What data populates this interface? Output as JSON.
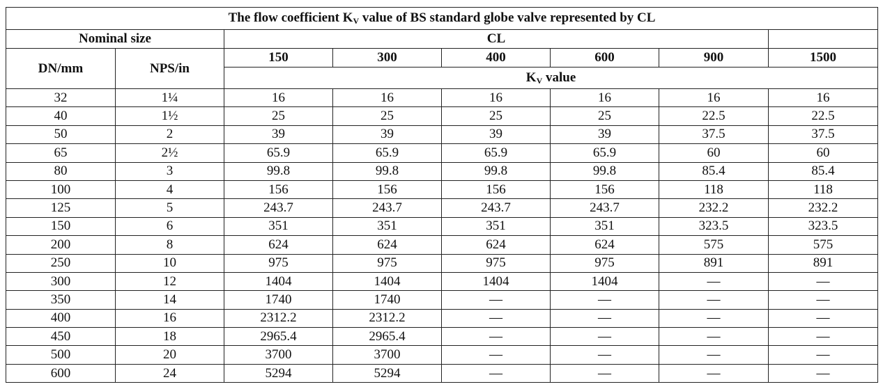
{
  "header": {
    "title": {
      "text": "The flow coefficient K",
      "sub": "V",
      "rest": " value of BS standard globe valve represented by CL"
    }
  },
  "table": {
    "nominal_size": "Nominal size",
    "cl": "CL",
    "columns": [
      "DN/mm",
      "NPS/in"
    ],
    "classes": [
      "150",
      "300",
      "400",
      "600",
      "900",
      "1500"
    ],
    "kv": {
      "text": "K",
      "sub": "V",
      "rest": " value"
    },
    "rows": [
      [
        32,
        "1¼",
        16,
        16,
        16,
        16,
        16,
        16
      ],
      [
        40,
        "1½",
        25,
        25,
        25,
        25,
        22.5,
        22.5
      ],
      [
        50,
        "2",
        39,
        39,
        39,
        39,
        37.5,
        37.5
      ],
      [
        65,
        "2½",
        65.9,
        65.9,
        65.9,
        65.9,
        60,
        60
      ],
      [
        80,
        "3",
        99.8,
        99.8,
        99.8,
        99.8,
        85.4,
        85.4
      ],
      [
        100,
        "4",
        156,
        156,
        156,
        156,
        118,
        118
      ],
      [
        125,
        "5",
        243.7,
        243.7,
        243.7,
        243.7,
        232.2,
        232.2
      ],
      [
        150,
        "6",
        351,
        351,
        351,
        351,
        323.5,
        323.5
      ],
      [
        200,
        "8",
        624,
        624,
        624,
        624,
        575,
        575
      ],
      [
        250,
        "10",
        975,
        975,
        975,
        975,
        891,
        891
      ],
      [
        300,
        "12",
        1404,
        1404,
        1404,
        1404,
        "—",
        "—"
      ],
      [
        350,
        "14",
        1740,
        1740,
        "—",
        "—",
        "—",
        "—"
      ],
      [
        400,
        "16",
        2312.2,
        2312.2,
        "—",
        "—",
        "—",
        "—"
      ],
      [
        450,
        "18",
        2965.4,
        2965.4,
        "—",
        "—",
        "—",
        "—"
      ],
      [
        500,
        "20",
        3700,
        3700,
        "—",
        "—",
        "—",
        "—"
      ],
      [
        600,
        "24",
        5294,
        5294,
        "—",
        "—",
        "—",
        "—"
      ]
    ]
  }
}
